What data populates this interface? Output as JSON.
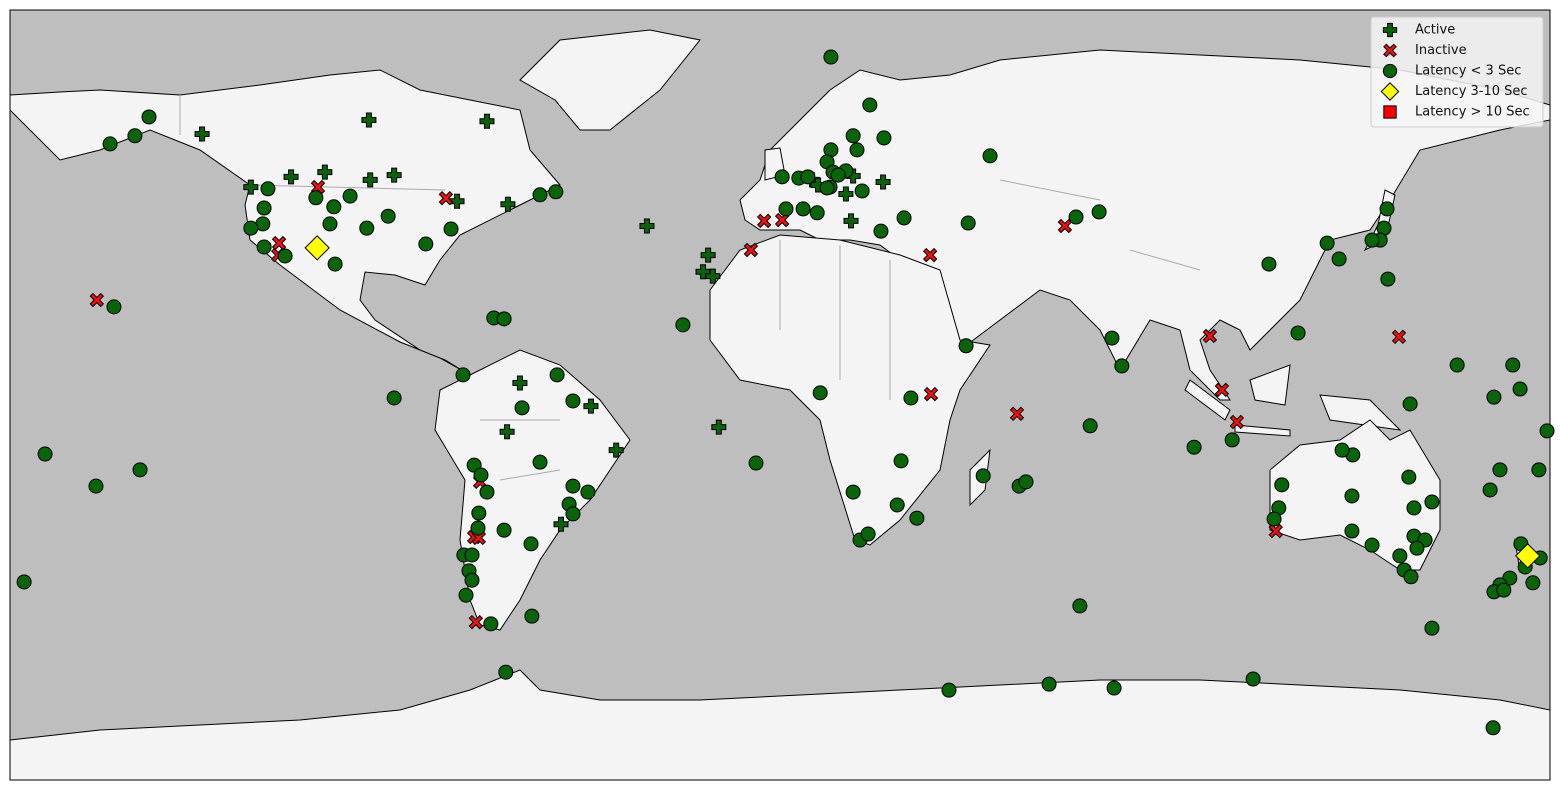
{
  "chart_data": {
    "type": "scatter",
    "xlim": [
      -180,
      180
    ],
    "ylim": [
      -90,
      90
    ],
    "ocean_color": "#bebebe",
    "land_color": "#f4f4f4",
    "legend": "upper right",
    "series": [
      {
        "name": "Active",
        "marker": "plus",
        "color": "#0d600d",
        "x": [
          -135.1,
          -96.1,
          -68.5,
          -123.7,
          -114.3,
          -106.4,
          -95.8,
          -90.2,
          -75.5,
          -63.6,
          -31.1,
          -16.8,
          -18.0,
          -15.7,
          -60.8,
          -44.2,
          -63.8,
          -14.3,
          -38.3,
          -51.2,
          7.5,
          17.1,
          24.1,
          15.4,
          16.6,
          8.9
        ],
        "values": [
          61.0,
          64.3,
          64.0,
          48.6,
          51.0,
          52.1,
          50.3,
          51.4,
          45.3,
          44.6,
          39.5,
          32.7,
          28.8,
          27.8,
          2.8,
          -2.6,
          -8.6,
          -7.5,
          -12.9,
          -30.2,
          50.3,
          51.2,
          49.8,
          47.0,
          40.7,
          49.1
        ]
      },
      {
        "name": "Inactive",
        "marker": "x",
        "color": "#ee1111",
        "x": [
          -108.0,
          -78.1,
          -117.1,
          -117.3,
          -159.7,
          -6.8,
          -3.7,
          0.5,
          35.1,
          66.6,
          100.5,
          144.7,
          103.3,
          106.8,
          35.3,
          55.4,
          -70.1,
          -71.5,
          -70.4,
          -71.1,
          115.9
        ],
        "values": [
          48.6,
          46.0,
          35.5,
          32.7,
          22.2,
          33.9,
          40.7,
          40.9,
          32.7,
          39.5,
          13.8,
          13.6,
          1.2,
          -6.3,
          0.2,
          -4.4,
          -20.3,
          -33.2,
          -33.4,
          -53.1,
          -31.8
        ]
      },
      {
        "name": "Latency < 3 Sec",
        "marker": "circle",
        "color": "#0a640a",
        "x": [
          11.9,
          -147.5,
          -156.6,
          -150.8,
          -119.7,
          -120.6,
          -120.9,
          -123.7,
          -120.6,
          -115.7,
          -108.5,
          -100.5,
          -104.3,
          -105.2,
          -96.6,
          -91.6,
          -82.8,
          -76.9,
          -104.0,
          -56.1,
          -52.4,
          49.1,
          21.0,
          17.1,
          18.0,
          11.9,
          11.0,
          12.4,
          15.4,
          24.3,
          0.5,
          4.4,
          6.5,
          11.7,
          13.6,
          11.0,
          19.2,
          5.4,
          1.4,
          8.7,
          23.6,
          29.0,
          44.0,
          69.2,
          74.6,
          141.9,
          141.2,
          140.3,
          138.4,
          127.9,
          130.7,
          114.3,
          142.1,
          121.1,
          77.6,
          79.9,
          43.5,
          -22.7,
          -66.9,
          -64.5,
          -74.1,
          -52.1,
          -48.4,
          -60.3,
          -90.2,
          -56.1,
          -48.4,
          -44.9,
          -49.3,
          -48.4,
          -64.5,
          -58.2,
          -71.5,
          -69.9,
          -68.5,
          -70.4,
          -70.6,
          -73.9,
          -72.0,
          -72.7,
          -72.0,
          -73.4,
          -67.6,
          -58.0,
          -64.1,
          -171.8,
          -159.9,
          -149.6,
          -176.7,
          -155.7,
          9.4,
          30.6,
          -5.6,
          28.3,
          17.1,
          27.4,
          32.0,
          18.7,
          20.6,
          47.5,
          55.9,
          57.5,
          72.5,
          70.1,
          96.8,
          105.7,
          158.3,
          171.3,
          166.9,
          173.0,
          147.3,
          179.3,
          133.9,
          131.4,
          147.0,
          168.3,
          166.0,
          177.4,
          117.3,
          116.6,
          115.5,
          133.7,
          148.2,
          152.4,
          133.7,
          148.2,
          150.8,
          138.4,
          144.9,
          148.9,
          145.9,
          147.5,
          152.4,
          173.2,
          177.7,
          174.2,
          170.6,
          168.3,
          166.9,
          169.2,
          176.0,
          39.5,
          62.9,
          78.1,
          110.6,
          166.7
        ],
        "values": [
          79.0,
          65.0,
          58.7,
          60.6,
          48.2,
          43.7,
          40.0,
          39.0,
          34.6,
          32.5,
          46.1,
          46.5,
          44.0,
          40.0,
          39.0,
          41.8,
          35.3,
          38.8,
          30.6,
          46.8,
          47.5,
          55.9,
          67.8,
          60.6,
          57.3,
          57.3,
          54.5,
          52.1,
          52.4,
          60.1,
          51.0,
          50.7,
          51.0,
          48.6,
          51.4,
          48.4,
          47.7,
          43.5,
          43.5,
          42.6,
          38.3,
          41.4,
          40.2,
          41.6,
          42.8,
          43.5,
          39.0,
          36.2,
          36.2,
          35.5,
          31.8,
          30.6,
          27.1,
          14.5,
          13.3,
          6.8,
          11.5,
          16.4,
          18.0,
          17.8,
          4.7,
          4.7,
          -1.4,
          -3.0,
          -0.7,
          -15.7,
          -21.3,
          -22.7,
          -25.5,
          -27.8,
          -31.6,
          -34.8,
          -16.4,
          -18.7,
          -22.7,
          -27.6,
          -31.1,
          -37.4,
          -37.4,
          -41.1,
          -43.3,
          -46.8,
          -53.5,
          -51.7,
          -64.8,
          -13.8,
          -21.3,
          -17.5,
          -43.7,
          20.6,
          0.5,
          -0.7,
          -15.9,
          -15.4,
          -22.7,
          -25.7,
          -28.8,
          -33.9,
          -32.5,
          -18.9,
          -21.3,
          -20.3,
          -7.2,
          -49.3,
          -12.2,
          -10.5,
          7.0,
          7.0,
          -0.5,
          1.4,
          -2.1,
          -8.4,
          -14.0,
          -12.9,
          -19.2,
          -17.5,
          -22.2,
          -17.5,
          -21.0,
          -26.4,
          -29.0,
          -23.6,
          -26.4,
          -25.0,
          -31.8,
          -33.0,
          -33.9,
          -35.1,
          -37.6,
          -35.8,
          -40.9,
          -42.5,
          -54.5,
          -34.8,
          -38.1,
          -40.2,
          -42.8,
          -44.4,
          -46.0,
          -45.6,
          -43.9,
          -69.0,
          -67.6,
          -68.5,
          -66.4,
          -77.8
        ]
      },
      {
        "name": "Latency 3-10 Sec",
        "marker": "diamond",
        "color": "#ffff00",
        "x": [
          -108.2,
          174.8
        ],
        "values": [
          34.4,
          -37.6
        ]
      },
      {
        "name": "Latency > 10 Sec",
        "marker": "square",
        "color": "#ff0000",
        "x": [],
        "values": []
      }
    ]
  }
}
